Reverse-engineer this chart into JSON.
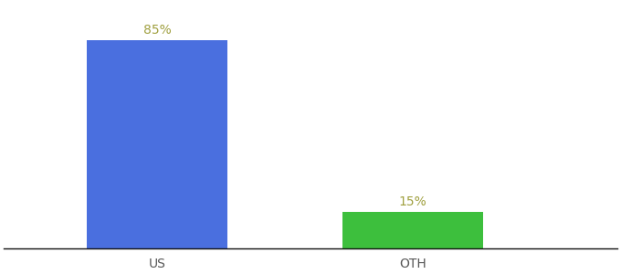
{
  "categories": [
    "US",
    "OTH"
  ],
  "values": [
    85,
    15
  ],
  "bar_colors": [
    "#4a6fdf",
    "#3dbf3d"
  ],
  "label_color": "#a0a040",
  "label_fontsize": 10,
  "tick_fontsize": 10,
  "tick_color": "#555555",
  "background_color": "#ffffff",
  "ylim": [
    0,
    100
  ],
  "bar_width": 0.55,
  "x_positions": [
    1,
    2
  ],
  "xlim": [
    0.4,
    2.8
  ],
  "figsize": [
    6.8,
    3.0
  ],
  "dpi": 100
}
